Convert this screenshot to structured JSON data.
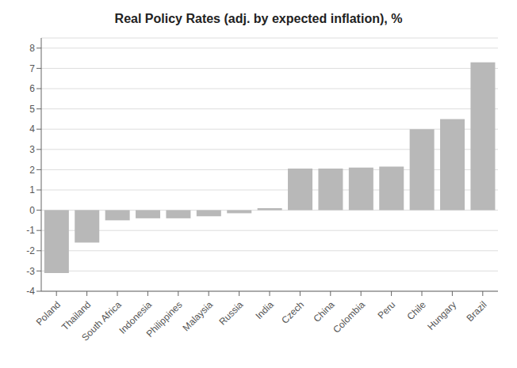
{
  "chart_data": {
    "type": "bar",
    "title": "Real Policy Rates (adj. by expected inflation), %",
    "categories": [
      "Poland",
      "Thailand",
      "South Africa",
      "Indonesia",
      "Philippines",
      "Malaysia",
      "Russia",
      "India",
      "Czech",
      "China",
      "Colombia",
      "Peru",
      "Chile",
      "Hungary",
      "Brazil"
    ],
    "values": [
      -3.1,
      -1.6,
      -0.5,
      -0.4,
      -0.4,
      -0.3,
      -0.15,
      0.1,
      2.05,
      2.05,
      2.1,
      2.15,
      4.0,
      4.5,
      7.3
    ],
    "color": "#b8b8b8",
    "ylim": [
      -4,
      8.5
    ],
    "yticks": [
      -4,
      -3,
      -2,
      -1,
      0,
      1,
      2,
      3,
      4,
      5,
      6,
      7,
      8
    ],
    "grid": true
  }
}
